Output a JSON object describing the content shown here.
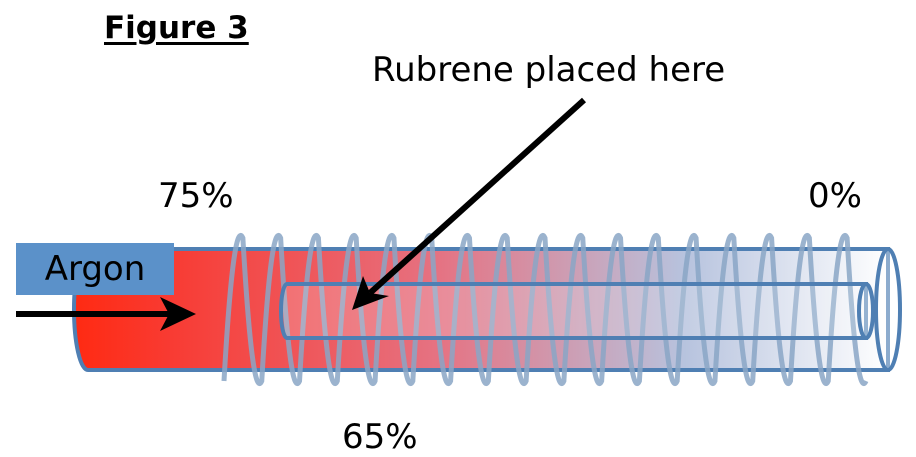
{
  "figure": {
    "title": "Figure 3",
    "pointer_label": "Rubrene placed here",
    "gas_label": "Argon",
    "percent_left": "75%",
    "percent_right": "0%",
    "percent_bottom": "65%"
  },
  "colors": {
    "tube_hot": "#ff2a12",
    "tube_cold": "#ffffff",
    "tube_outline": "#4f7fb3",
    "coil": "#8aa6c6",
    "argon_box": "#5b91c9"
  }
}
